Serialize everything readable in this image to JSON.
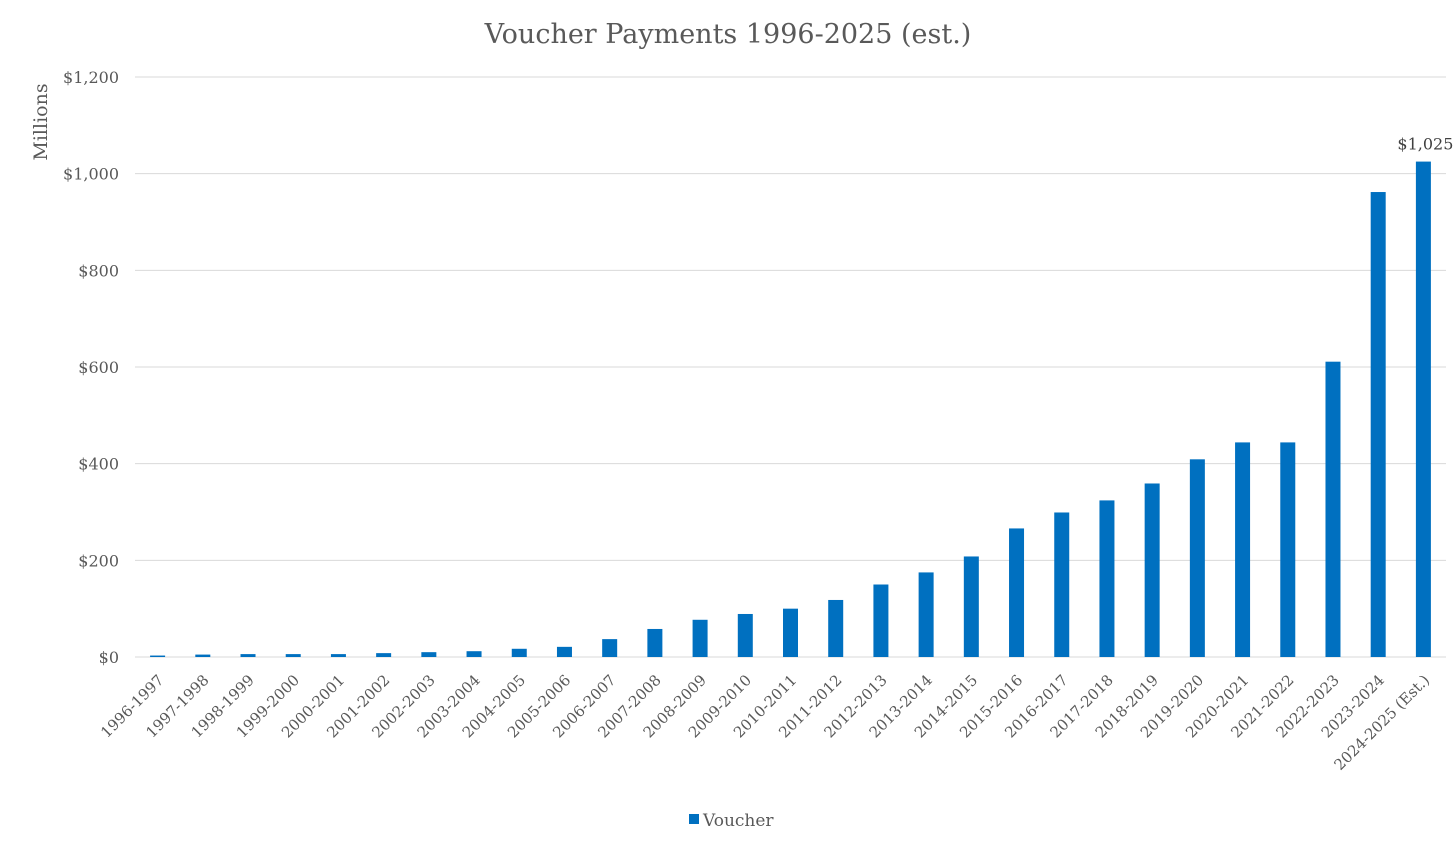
{
  "chart_data": {
    "type": "bar",
    "title": "Voucher Payments 1996-2025 (est.)",
    "xlabel": "",
    "ylabel": "Millions",
    "ylim": [
      0,
      1200
    ],
    "yticks": [
      0,
      200,
      400,
      600,
      800,
      1000,
      1200
    ],
    "ytick_labels": [
      "$0",
      "$200",
      "$400",
      "$600",
      "$800",
      "$1,000",
      "$1,200"
    ],
    "grid": true,
    "legend_position": "bottom",
    "categories": [
      "1996-1997",
      "1997-1998",
      "1998-1999",
      "1999-2000",
      "2000-2001",
      "2001-2002",
      "2002-2003",
      "2003-2004",
      "2004-2005",
      "2005-2006",
      "2006-2007",
      "2007-2008",
      "2008-2009",
      "2009-2010",
      "2010-2011",
      "2011-2012",
      "2012-2013",
      "2013-2014",
      "2014-2015",
      "2015-2016",
      "2016-2017",
      "2017-2018",
      "2018-2019",
      "2019-2020",
      "2020-2021",
      "2021-2022",
      "2022-2023",
      "2023-2024",
      "2024-2025 (Est.)"
    ],
    "series": [
      {
        "name": "Voucher",
        "color": "#0070c0",
        "values": [
          3,
          5,
          6,
          6,
          6,
          8,
          10,
          12,
          17,
          21,
          37,
          58,
          77,
          89,
          100,
          118,
          150,
          175,
          208,
          266,
          299,
          324,
          359,
          409,
          444,
          444,
          611,
          962,
          1025
        ]
      }
    ],
    "annotations": [
      {
        "category_index": 28,
        "text": "$1,025"
      }
    ]
  }
}
